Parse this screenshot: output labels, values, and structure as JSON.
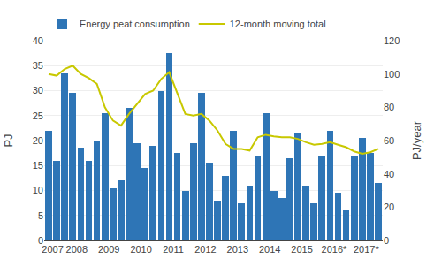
{
  "chart_data": {
    "type": "bar",
    "categories": [
      "2007",
      "2007",
      "2008",
      "2008",
      "2008",
      "2008",
      "2009",
      "2009",
      "2009",
      "2009",
      "2010",
      "2010",
      "2010",
      "2010",
      "2011",
      "2011",
      "2011",
      "2011",
      "2012",
      "2012",
      "2012",
      "2012",
      "2013",
      "2013",
      "2013",
      "2013",
      "2014",
      "2014",
      "2014",
      "2014",
      "2015",
      "2015",
      "2015",
      "2015",
      "2016*",
      "2016*",
      "2016*",
      "2016*",
      "2017*",
      "2017*",
      "2017*",
      "2017*"
    ],
    "series": [
      {
        "name": "Energy peat consumption",
        "type": "bar",
        "color": "#2E75B6",
        "values": [
          22.0,
          16.0,
          33.5,
          29.5,
          18.5,
          16.0,
          20.0,
          25.5,
          10.5,
          12.0,
          26.5,
          19.5,
          14.5,
          19.0,
          30.0,
          37.5,
          17.5,
          10.0,
          19.5,
          29.5,
          15.5,
          8.0,
          13.0,
          22.0,
          7.5,
          11.0,
          17.0,
          25.5,
          10.0,
          8.5,
          16.5,
          21.5,
          11.0,
          7.5,
          17.0,
          22.0,
          9.5,
          6.0,
          17.0,
          20.5,
          17.5,
          11.5
        ]
      },
      {
        "name": "12-month moving total",
        "type": "line",
        "axis": "y2",
        "color": "#C8C800",
        "values": [
          100.0,
          99.0,
          103.0,
          105.0,
          100.0,
          97.5,
          94.0,
          80.0,
          72.0,
          69.0,
          76.0,
          82.0,
          88.0,
          90.0,
          97.0,
          101.0,
          88.0,
          76.0,
          75.0,
          76.0,
          72.0,
          66.0,
          58.0,
          55.0,
          55.0,
          54.0,
          62.0,
          63.5,
          62.5,
          62.0,
          62.0,
          61.0,
          59.0,
          57.5,
          58.0,
          59.0,
          57.5,
          56.0,
          53.5,
          52.0,
          53.0,
          55.0
        ]
      }
    ],
    "ylabel": "PJ",
    "y2label": "PJ/year",
    "ylim": [
      0,
      40
    ],
    "yticks": [
      0,
      5,
      10,
      15,
      20,
      25,
      30,
      35,
      40
    ],
    "y2lim": [
      0,
      120
    ],
    "y2ticks": [
      0,
      20,
      40,
      60,
      80,
      100,
      120
    ],
    "grid": true,
    "legend": "top left"
  }
}
